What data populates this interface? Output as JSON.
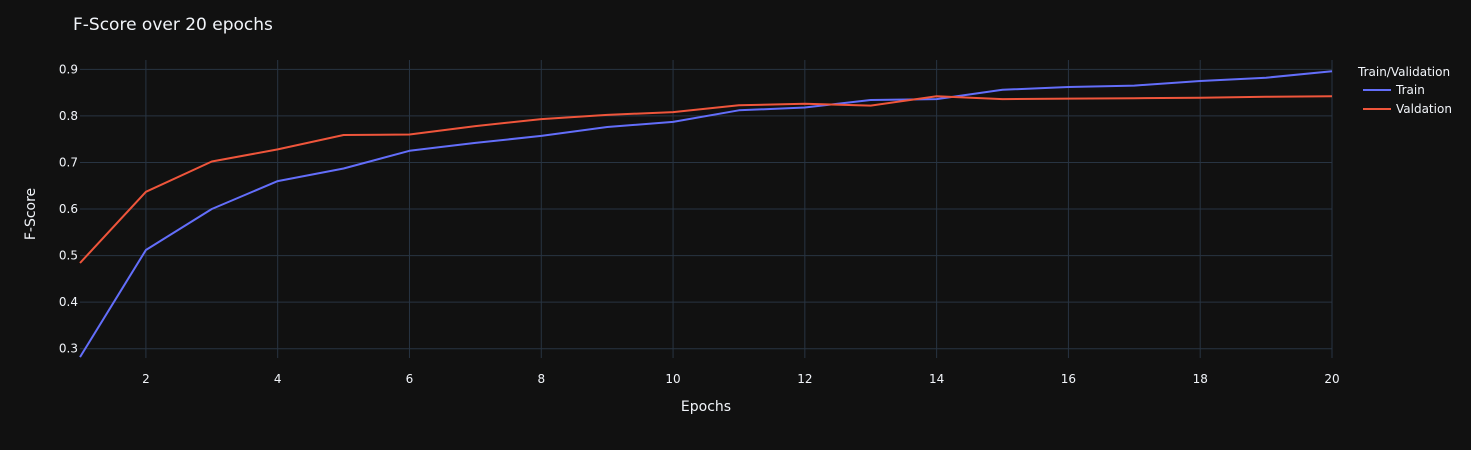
{
  "chart_data": {
    "type": "line",
    "title": "F-Score over 20 epochs",
    "xlabel": "Epochs",
    "ylabel": "F-Score",
    "xlim": [
      1,
      20
    ],
    "ylim": [
      0.28,
      0.92
    ],
    "xticks": [
      2,
      4,
      6,
      8,
      10,
      12,
      14,
      16,
      18,
      20
    ],
    "yticks": [
      0.3,
      0.4,
      0.5,
      0.6,
      0.7,
      0.8,
      0.9
    ],
    "grid": true,
    "legend": {
      "title": "Train/Validation",
      "placement": "top-right, outside plot"
    },
    "x": [
      1,
      2,
      3,
      4,
      5,
      6,
      7,
      8,
      9,
      10,
      11,
      12,
      13,
      14,
      15,
      16,
      17,
      18,
      19,
      20
    ],
    "series": [
      {
        "name": "Train",
        "color": "#636efa",
        "values": [
          0.282,
          0.512,
          0.6,
          0.66,
          0.687,
          0.725,
          0.742,
          0.757,
          0.776,
          0.787,
          0.812,
          0.818,
          0.834,
          0.836,
          0.856,
          0.862,
          0.865,
          0.875,
          0.882,
          0.896
        ]
      },
      {
        "name": "Valdation",
        "color": "#EF553B",
        "values": [
          0.484,
          0.637,
          0.702,
          0.728,
          0.759,
          0.76,
          0.778,
          0.793,
          0.802,
          0.808,
          0.823,
          0.826,
          0.822,
          0.842,
          0.836,
          0.837,
          0.838,
          0.839,
          0.841,
          0.842
        ]
      }
    ]
  }
}
